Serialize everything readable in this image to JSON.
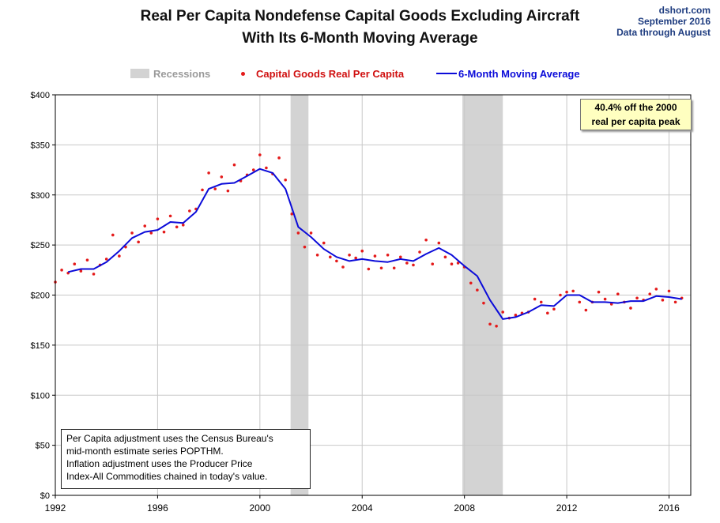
{
  "header": {
    "title_line1": "Real Per Capita Nondefense Capital Goods Excluding Aircraft",
    "title_line2": "With Its 6-Month Moving Average",
    "source_line1": "dshort.com",
    "source_line2": "September 2016",
    "source_line3": "Data through August"
  },
  "legend": {
    "recessions": "Recessions",
    "capital_goods": "Capital Goods Real Per Capita",
    "moving_average": "6-Month Moving Average"
  },
  "callout": {
    "line1": "40.4% off the 2000",
    "line2": "real per capita peak"
  },
  "note": {
    "lines": [
      "Per Capita adjustment uses the Census Bureau's",
      "mid-month estimate series POPTHM.",
      "Inflation adjustment uses the Producer Price",
      "Index-All Commodities chained in today's value."
    ]
  },
  "colors": {
    "points": "#e41a1a",
    "average": "#0b0bd9",
    "recession": "#d3d3d3",
    "grid": "#c8c8c8",
    "title": "#111111",
    "source": "#1f3d80",
    "callout_bg": "#ffffc0"
  },
  "chart_data": {
    "type": "line",
    "title": "Real Per Capita Nondefense Capital Goods Excluding Aircraft With Its 6-Month Moving Average",
    "xlim": [
      1992,
      2016.85
    ],
    "ylim": [
      0,
      400
    ],
    "x_ticks": [
      1992,
      1996,
      2000,
      2004,
      2008,
      2012,
      2016
    ],
    "x_tick_labels": [
      "1992",
      "1996",
      "2000",
      "2004",
      "2008",
      "2012",
      "2016"
    ],
    "y_ticks": [
      0,
      50,
      100,
      150,
      200,
      250,
      300,
      350,
      400
    ],
    "y_tick_labels": [
      "$0",
      "$50",
      "$100",
      "$150",
      "$200",
      "$250",
      "$300",
      "$350",
      "$400"
    ],
    "grid": true,
    "legend_position": "top",
    "recessions": [
      [
        2001.2,
        2001.9
      ],
      [
        2007.92,
        2009.5
      ]
    ],
    "series": [
      {
        "name": "6-Month Moving Average",
        "style": "line",
        "x": [
          1992.5,
          1993.0,
          1993.5,
          1994.0,
          1994.5,
          1995.0,
          1995.5,
          1996.0,
          1996.5,
          1997.0,
          1997.5,
          1998.0,
          1998.5,
          1999.0,
          1999.5,
          2000.0,
          2000.5,
          2001.0,
          2001.5,
          2002.0,
          2002.5,
          2003.0,
          2003.5,
          2004.0,
          2004.5,
          2005.0,
          2005.5,
          2006.0,
          2006.5,
          2007.0,
          2007.5,
          2008.0,
          2008.5,
          2009.0,
          2009.5,
          2010.0,
          2010.5,
          2011.0,
          2011.5,
          2012.0,
          2012.5,
          2013.0,
          2013.5,
          2014.0,
          2014.5,
          2015.0,
          2015.5,
          2016.0,
          2016.5
        ],
        "y": [
          223,
          226,
          226,
          233,
          244,
          257,
          263,
          265,
          273,
          272,
          283,
          306,
          311,
          312,
          319,
          326,
          322,
          306,
          268,
          258,
          246,
          238,
          234,
          236,
          234,
          233,
          236,
          234,
          241,
          247,
          240,
          229,
          219,
          195,
          176,
          178,
          183,
          190,
          189,
          200,
          200,
          193,
          193,
          192,
          194,
          194,
          199,
          198,
          196
        ]
      },
      {
        "name": "Capital Goods Real Per Capita",
        "style": "points",
        "x": [
          1992.0,
          1992.25,
          1992.5,
          1992.75,
          1993.0,
          1993.25,
          1993.5,
          1993.75,
          1994.0,
          1994.25,
          1994.5,
          1994.75,
          1995.0,
          1995.25,
          1995.5,
          1995.75,
          1996.0,
          1996.25,
          1996.5,
          1996.75,
          1997.0,
          1997.25,
          1997.5,
          1997.75,
          1998.0,
          1998.25,
          1998.5,
          1998.75,
          1999.0,
          1999.25,
          1999.5,
          1999.75,
          2000.0,
          2000.25,
          2000.5,
          2000.75,
          2001.0,
          2001.25,
          2001.5,
          2001.75,
          2002.0,
          2002.25,
          2002.5,
          2002.75,
          2003.0,
          2003.25,
          2003.5,
          2003.75,
          2004.0,
          2004.25,
          2004.5,
          2004.75,
          2005.0,
          2005.25,
          2005.5,
          2005.75,
          2006.0,
          2006.25,
          2006.5,
          2006.75,
          2007.0,
          2007.25,
          2007.5,
          2007.75,
          2008.0,
          2008.25,
          2008.5,
          2008.75,
          2009.0,
          2009.25,
          2009.5,
          2009.75,
          2010.0,
          2010.25,
          2010.5,
          2010.75,
          2011.0,
          2011.25,
          2011.5,
          2011.75,
          2012.0,
          2012.25,
          2012.5,
          2012.75,
          2013.0,
          2013.25,
          2013.5,
          2013.75,
          2014.0,
          2014.25,
          2014.5,
          2014.75,
          2015.0,
          2015.25,
          2015.5,
          2015.75,
          2016.0,
          2016.25,
          2016.5
        ],
        "y": [
          213,
          225,
          222,
          231,
          224,
          235,
          221,
          230,
          236,
          260,
          239,
          248,
          262,
          253,
          269,
          262,
          276,
          263,
          279,
          268,
          270,
          284,
          286,
          305,
          322,
          306,
          318,
          304,
          330,
          314,
          320,
          325,
          340,
          327,
          321,
          337,
          315,
          281,
          262,
          248,
          262,
          240,
          252,
          238,
          234,
          228,
          240,
          237,
          244,
          226,
          239,
          227,
          240,
          227,
          238,
          232,
          230,
          243,
          255,
          231,
          252,
          238,
          231,
          232,
          228,
          212,
          205,
          192,
          171,
          169,
          183,
          177,
          180,
          182,
          183,
          196,
          193,
          182,
          186,
          200,
          203,
          204,
          193,
          185,
          193,
          203,
          196,
          191,
          201,
          193,
          187,
          197,
          195,
          201,
          206,
          195,
          204,
          193,
          197
        ]
      }
    ]
  }
}
